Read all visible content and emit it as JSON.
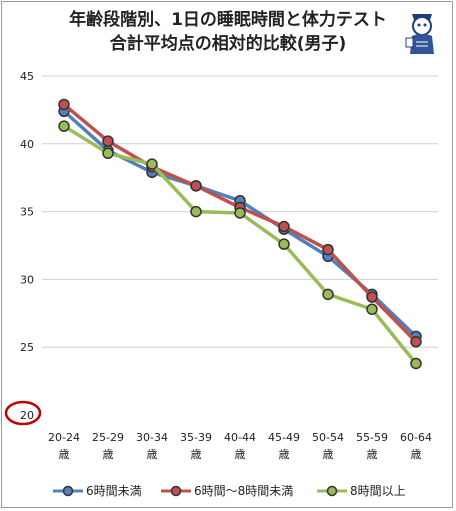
{
  "title_line1": "年齢段階別、1日の睡眠時間と体力テスト",
  "title_line2": "合計平均点の相対的比較(男子)",
  "colors": {
    "series1": "#4f81bd",
    "series2": "#c0504d",
    "series3": "#9bbb59",
    "highlight_circle": "#c00000",
    "grid": "#d0d0d0"
  },
  "chart_data": {
    "type": "line",
    "categories": [
      "20-24\n歳",
      "25-29\n歳",
      "30-34\n歳",
      "35-39\n歳",
      "40-44\n歳",
      "45-49\n歳",
      "50-54\n歳",
      "55-59\n歳",
      "60-64\n歳"
    ],
    "ylim": [
      20,
      45
    ],
    "yticks": [
      "20",
      "25",
      "30",
      "35",
      "40",
      "45"
    ],
    "grid": true,
    "legend": "bottom",
    "series": [
      {
        "name": "6時間未満",
        "values": [
          42.4,
          39.5,
          37.9,
          36.9,
          35.8,
          33.7,
          31.7,
          28.9,
          25.8
        ]
      },
      {
        "name": "6時間～8時間未満",
        "values": [
          42.9,
          40.2,
          38.3,
          36.9,
          35.3,
          33.9,
          32.2,
          28.7,
          25.4
        ]
      },
      {
        "name": "8時間以上",
        "values": [
          41.3,
          39.3,
          38.5,
          35.0,
          34.9,
          32.6,
          28.9,
          27.8,
          23.8
        ]
      }
    ]
  }
}
